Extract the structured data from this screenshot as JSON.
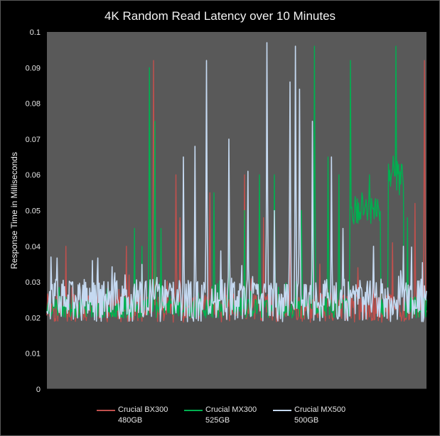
{
  "chart_data": {
    "type": "line",
    "title": "4K Random Read Latency over 10 Minutes",
    "xlabel": "",
    "ylabel": "Response Time in Milliseconds",
    "ylim": [
      0,
      0.1
    ],
    "yticks": [
      "0",
      "0.01",
      "0.02",
      "0.03",
      "0.04",
      "0.05",
      "0.06",
      "0.07",
      "0.08",
      "0.09",
      "0.1"
    ],
    "grid": false,
    "legend": "bottom",
    "plot_background": "#595959",
    "series": [
      {
        "name": "Crucial BX300",
        "name_line2": "480GB",
        "color": "#c0504d",
        "base": 0.0215,
        "noise": 0.004,
        "seed": 11,
        "spikes": [
          [
            0.05,
            0.04
          ],
          [
            0.21,
            0.04
          ],
          [
            0.28,
            0.092
          ],
          [
            0.35,
            0.048
          ],
          [
            0.34,
            0.06
          ],
          [
            0.43,
            0.055
          ],
          [
            0.52,
            0.06
          ],
          [
            0.57,
            0.048
          ],
          [
            0.6,
            0.05
          ],
          [
            0.64,
            0.045
          ],
          [
            0.72,
            0.035
          ],
          [
            0.82,
            0.034
          ],
          [
            0.91,
            0.041
          ],
          [
            0.97,
            0.052
          ],
          [
            0.995,
            0.092
          ]
        ]
      },
      {
        "name": "Crucial MX300",
        "name_line2": "525GB",
        "color": "#00b050",
        "base": 0.022,
        "noise": 0.003,
        "seed": 23,
        "spikes": [
          [
            0.23,
            0.045
          ],
          [
            0.25,
            0.04
          ],
          [
            0.27,
            0.09
          ],
          [
            0.285,
            0.075
          ],
          [
            0.3,
            0.045
          ],
          [
            0.44,
            0.055
          ],
          [
            0.48,
            0.057
          ],
          [
            0.52,
            0.05
          ],
          [
            0.56,
            0.06
          ],
          [
            0.6,
            0.06
          ],
          [
            0.67,
            0.05
          ],
          [
            0.7,
            0.05
          ],
          [
            0.705,
            0.096
          ],
          [
            0.74,
            0.065
          ],
          [
            0.77,
            0.06
          ],
          [
            0.8,
            0.092
          ],
          [
            0.83,
            0.055
          ],
          [
            0.85,
            0.06
          ],
          [
            0.9,
            0.063
          ],
          [
            0.92,
            0.096
          ],
          [
            0.95,
            0.048
          ]
        ],
        "plateaus": [
          [
            0.8,
            0.88,
            0.05,
            0.004
          ],
          [
            0.9,
            0.94,
            0.06,
            0.006
          ]
        ]
      },
      {
        "name": "Crucial MX500",
        "name_line2": "500GB",
        "color": "#c5d9f1",
        "base": 0.023,
        "noise": 0.006,
        "seed": 37,
        "spikes": [
          [
            0.01,
            0.037
          ],
          [
            0.12,
            0.036
          ],
          [
            0.36,
            0.065
          ],
          [
            0.39,
            0.068
          ],
          [
            0.42,
            0.092
          ],
          [
            0.48,
            0.07
          ],
          [
            0.53,
            0.061
          ],
          [
            0.58,
            0.097
          ],
          [
            0.6,
            0.05
          ],
          [
            0.64,
            0.086
          ],
          [
            0.655,
            0.096
          ],
          [
            0.665,
            0.084
          ],
          [
            0.7,
            0.075
          ],
          [
            0.75,
            0.065
          ],
          [
            0.78,
            0.045
          ],
          [
            0.86,
            0.04
          ],
          [
            0.94,
            0.04
          ]
        ]
      }
    ]
  }
}
